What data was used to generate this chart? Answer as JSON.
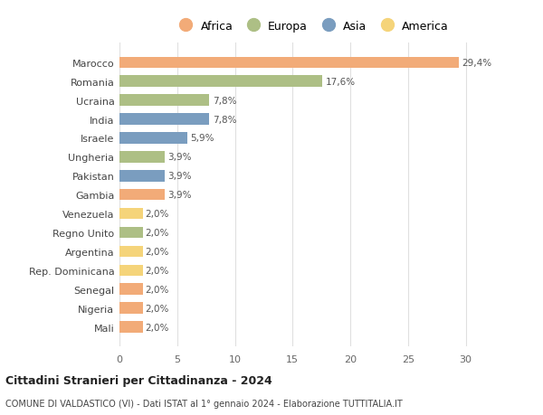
{
  "countries": [
    "Marocco",
    "Romania",
    "Ucraina",
    "India",
    "Israele",
    "Ungheria",
    "Pakistan",
    "Gambia",
    "Venezuela",
    "Regno Unito",
    "Argentina",
    "Rep. Dominicana",
    "Senegal",
    "Nigeria",
    "Mali"
  ],
  "values": [
    29.4,
    17.6,
    7.8,
    7.8,
    5.9,
    3.9,
    3.9,
    3.9,
    2.0,
    2.0,
    2.0,
    2.0,
    2.0,
    2.0,
    2.0
  ],
  "labels": [
    "29,4%",
    "17,6%",
    "7,8%",
    "7,8%",
    "5,9%",
    "3,9%",
    "3,9%",
    "3,9%",
    "2,0%",
    "2,0%",
    "2,0%",
    "2,0%",
    "2,0%",
    "2,0%",
    "2,0%"
  ],
  "continents": [
    "Africa",
    "Europa",
    "Europa",
    "Asia",
    "Asia",
    "Europa",
    "Asia",
    "Africa",
    "America",
    "Europa",
    "America",
    "America",
    "Africa",
    "Africa",
    "Africa"
  ],
  "colors": {
    "Africa": "#F2AB78",
    "Europa": "#ADBF85",
    "Asia": "#7A9DBF",
    "America": "#F5D47A"
  },
  "title": "Cittadini Stranieri per Cittadinanza - 2024",
  "subtitle": "COMUNE DI VALDASTICO (VI) - Dati ISTAT al 1° gennaio 2024 - Elaborazione TUTTITALIA.IT",
  "xlim": [
    0,
    32
  ],
  "xticks": [
    0,
    5,
    10,
    15,
    20,
    25,
    30
  ],
  "background_color": "#ffffff",
  "grid_color": "#e0e0e0",
  "bar_height": 0.6
}
